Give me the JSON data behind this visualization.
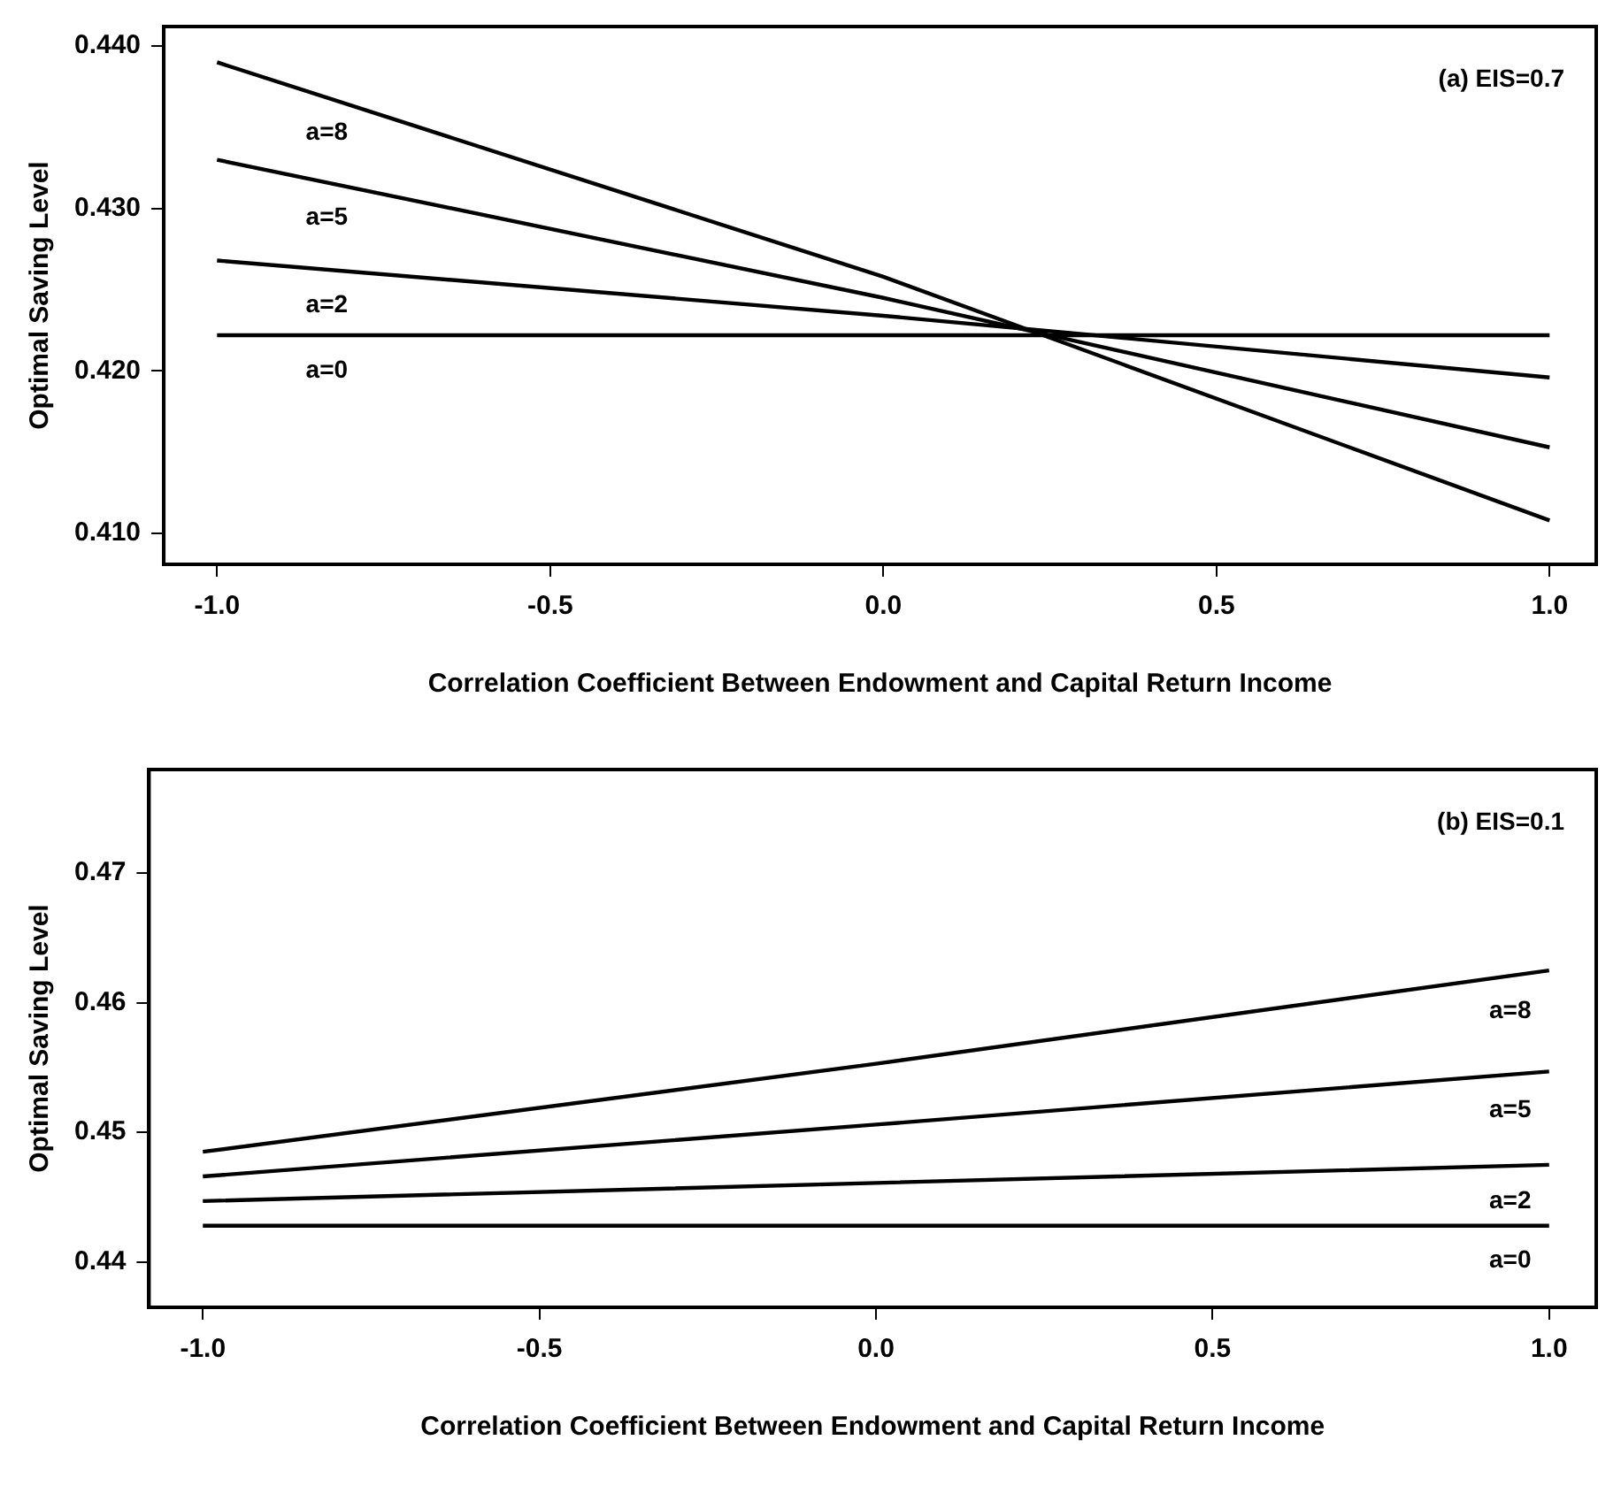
{
  "chart_data": [
    {
      "type": "line",
      "xlabel": "Correlation Coefficient Between Endowment and Capital Return Income",
      "ylabel": "Optimal Saving Level",
      "x": [
        -1,
        0,
        1
      ],
      "series": [
        {
          "name": "a=8",
          "color": "#000000",
          "values": [
            0.439,
            0.4258,
            0.4108
          ]
        },
        {
          "name": "a=5",
          "color": "#000000",
          "values": [
            0.433,
            0.4245,
            0.4153
          ]
        },
        {
          "name": "a=2",
          "color": "#000000",
          "values": [
            0.4268,
            0.4234,
            0.4196
          ]
        },
        {
          "name": "a=0",
          "color": "#000000",
          "values": [
            0.4222,
            0.4222,
            0.4222
          ]
        }
      ],
      "xlim": [
        -1.08,
        1.07
      ],
      "ylim": [
        0.4081,
        0.4412
      ],
      "xticks": [
        {
          "value": -1,
          "label": "-1.0"
        },
        {
          "value": -0.5,
          "label": "-0.5"
        },
        {
          "value": 0,
          "label": "0.0"
        },
        {
          "value": 0.5,
          "label": "0.5"
        },
        {
          "value": 1,
          "label": "1.0"
        }
      ],
      "yticks": [
        {
          "value": 0.41,
          "label": "0.410"
        },
        {
          "value": 0.42,
          "label": "0.420"
        },
        {
          "value": 0.43,
          "label": "0.430"
        },
        {
          "value": 0.44,
          "label": "0.440"
        }
      ],
      "annotations": [
        "(a) EIS=0.7"
      ],
      "grid": false,
      "legend": false,
      "marker": "none",
      "line_style": "solid"
    },
    {
      "type": "line",
      "xlabel": "Correlation Coefficient Between Endowment and Capital Return Income",
      "ylabel": "Optimal Saving Level",
      "x": [
        -1,
        0,
        1
      ],
      "series": [
        {
          "name": "a=8",
          "color": "#000000",
          "values": [
            0.4485,
            0.4553,
            0.4625
          ]
        },
        {
          "name": "a=5",
          "color": "#000000",
          "values": [
            0.4466,
            0.4506,
            0.4547
          ]
        },
        {
          "name": "a=2",
          "color": "#000000",
          "values": [
            0.4447,
            0.4461,
            0.4475
          ]
        },
        {
          "name": "a=0",
          "color": "#000000",
          "values": [
            0.4428,
            0.4428,
            0.4428
          ]
        }
      ],
      "xlim": [
        -1.08,
        1.07
      ],
      "ylim": [
        0.4365,
        0.478
      ],
      "xticks": [
        {
          "value": -1,
          "label": "-1.0"
        },
        {
          "value": -0.5,
          "label": "-0.5"
        },
        {
          "value": 0,
          "label": "0.0"
        },
        {
          "value": 0.5,
          "label": "0.5"
        },
        {
          "value": 1,
          "label": "1.0"
        }
      ],
      "yticks": [
        0.44,
        0.45,
        0.46,
        0.47
      ],
      "annotations": [
        "(b) EIS=0.1"
      ],
      "grid": false,
      "legend": false,
      "marker": "none",
      "line_style": "solid"
    }
  ]
}
